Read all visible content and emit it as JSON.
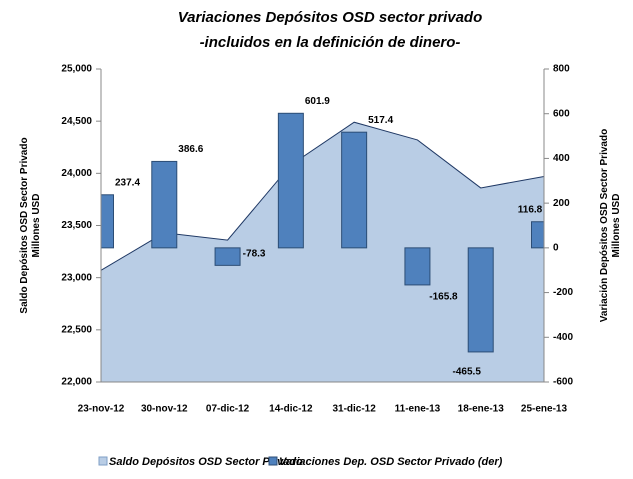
{
  "chart_data": {
    "type": "bar-area",
    "title": "Variaciones Depósitos OSD sector privado",
    "subtitle": "-incluidos en la definición de dinero-",
    "categories": [
      "23-nov-12",
      "30-nov-12",
      "07-dic-12",
      "14-dic-12",
      "31-dic-12",
      "11-ene-13",
      "18-ene-13",
      "25-ene-13"
    ],
    "series": [
      {
        "name": "Saldo Depósitos OSD Sector Privado",
        "type": "area",
        "color": "#b9cde5",
        "values": [
          23070,
          23430,
          23360,
          24080,
          24490,
          24320,
          23860,
          23970
        ]
      },
      {
        "name": "Variaciones Dep. OSD Sector Privado (der)",
        "type": "bar",
        "axis": "y2",
        "color": "#4f81bd",
        "values": [
          237.4,
          386.6,
          -78.3,
          601.9,
          517.4,
          -165.8,
          -465.5,
          116.8
        ]
      }
    ],
    "ylabel": "Saldo Depósitos OSD Sector Privado Millones USD",
    "y2label": "Variación Depósitos OSD Sector Privado Millones USD",
    "ylim": [
      22000,
      25000
    ],
    "yticks": [
      {
        "value": 22000,
        "label": "22,000"
      },
      {
        "value": 22500,
        "label": "22,500"
      },
      {
        "value": 23000,
        "label": "23,000"
      },
      {
        "value": 23500,
        "label": "23,500"
      },
      {
        "value": 24000,
        "label": "24,000"
      },
      {
        "value": 24500,
        "label": "24,500"
      },
      {
        "value": 25000,
        "label": "25,000"
      }
    ],
    "y2lim": [
      -600,
      800
    ],
    "y2ticks": [
      -600,
      -400,
      -200,
      0,
      200,
      400,
      600,
      800
    ],
    "legend": "bottom"
  }
}
